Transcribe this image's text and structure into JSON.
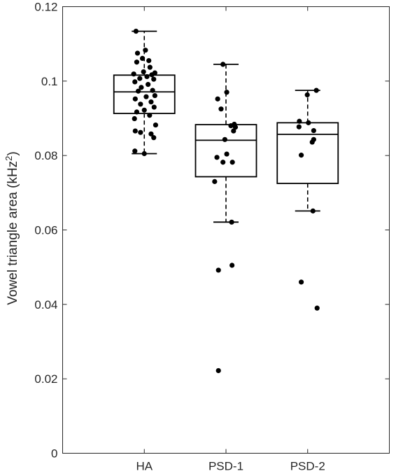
{
  "chart_data": {
    "type": "box",
    "ylabel": "Vowel triangle area (kHz",
    "ylabel_superscript": "2",
    "ylabel_suffix": ")",
    "ylim": [
      0,
      0.12
    ],
    "yticks": [
      0,
      0.02,
      0.04,
      0.06,
      0.08,
      0.1,
      0.12
    ],
    "ytick_labels": [
      "0",
      "0.02",
      "0.04",
      "0.06",
      "0.08",
      "0.1",
      "0.12"
    ],
    "categories": [
      "HA",
      "PSD-1",
      "PSD-2"
    ],
    "boxes": [
      {
        "category": "HA",
        "whisker_low": 0.0805,
        "q1": 0.0913,
        "median": 0.0971,
        "q3": 0.1016,
        "whisker_high": 0.1134
      },
      {
        "category": "PSD-1",
        "whisker_low": 0.0621,
        "q1": 0.0743,
        "median": 0.0841,
        "q3": 0.0883,
        "whisker_high": 0.1045
      },
      {
        "category": "PSD-2",
        "whisker_low": 0.0651,
        "q1": 0.0725,
        "median": 0.0857,
        "q3": 0.0888,
        "whisker_high": 0.0975
      }
    ],
    "points": [
      {
        "category": "HA",
        "values": [
          0.1134,
          0.1083,
          0.1075,
          0.1061,
          0.1055,
          0.1051,
          0.1037,
          0.1025,
          0.1022,
          0.1019,
          0.1017,
          0.1012,
          0.1007,
          0.1005,
          0.0998,
          0.0991,
          0.0983,
          0.0975,
          0.0973,
          0.0961,
          0.0958,
          0.0952,
          0.0944,
          0.0938,
          0.093,
          0.0922,
          0.0917,
          0.0908,
          0.0899,
          0.0882,
          0.0866,
          0.0862,
          0.0858,
          0.0848,
          0.0812,
          0.0805
        ]
      },
      {
        "category": "PSD-1",
        "values": [
          0.1045,
          0.097,
          0.0952,
          0.0925,
          0.0884,
          0.088,
          0.0876,
          0.0866,
          0.0843,
          0.0804,
          0.0795,
          0.0782,
          0.0782,
          0.073,
          0.0621,
          0.0505,
          0.0492,
          0.0222
        ]
      },
      {
        "category": "PSD-2",
        "values": [
          0.0975,
          0.0963,
          0.0892,
          0.0888,
          0.0877,
          0.0867,
          0.0843,
          0.0836,
          0.0801,
          0.0651,
          0.046,
          0.039
        ]
      }
    ],
    "point_jitter": [
      [
        -0.22,
        0.03,
        -0.18,
        -0.05,
        0.12,
        -0.2,
        0.15,
        -0.02,
        0.28,
        -0.28,
        0.2,
        0.07,
        -0.12,
        0.25,
        -0.25,
        0.1,
        -0.08,
        0.22,
        -0.16,
        0.28,
        0.05,
        -0.24,
        0.18,
        -0.1,
        0.26,
        0.0,
        -0.2,
        0.14,
        -0.26,
        0.3,
        -0.24,
        -0.1,
        0.18,
        0.25,
        -0.25,
        0.0
      ],
      [
        -0.08,
        0.02,
        -0.22,
        -0.13,
        0.22,
        0.13,
        0.25,
        0.2,
        -0.03,
        0.02,
        -0.24,
        -0.08,
        0.17,
        -0.3,
        0.15,
        0.16,
        -0.2,
        -0.2
      ],
      [
        0.23,
        -0.01,
        -0.22,
        0.02,
        -0.23,
        0.16,
        0.16,
        0.12,
        -0.17,
        0.14,
        -0.17,
        0.25
      ]
    ]
  }
}
